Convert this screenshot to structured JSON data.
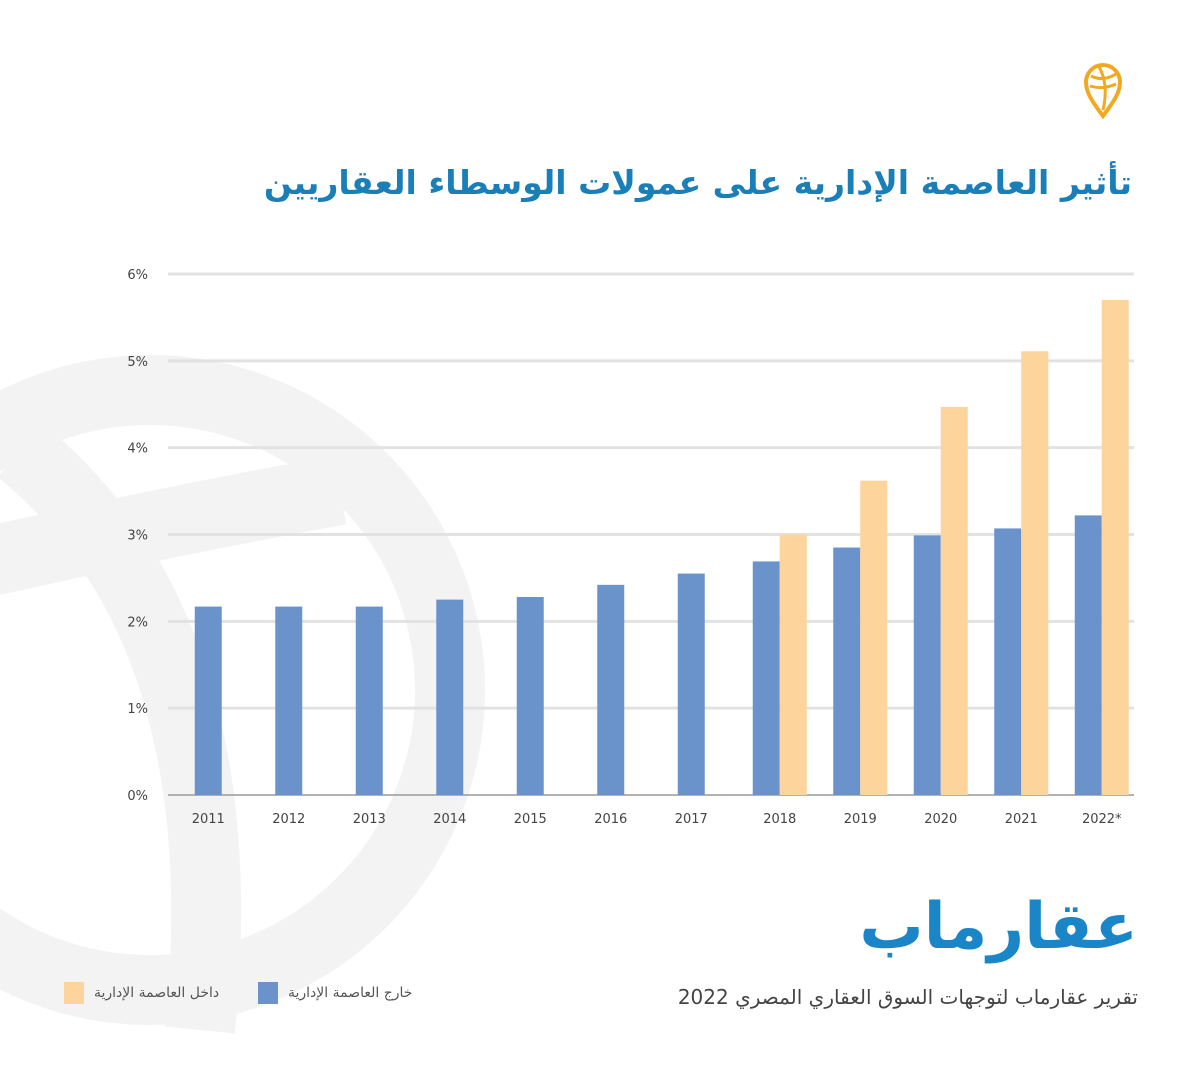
{
  "title": "تأثير العاصمة الإدارية على عمولات الوسطاء العقاريين",
  "brand": "عقارماب",
  "report_caption": "تقرير عقارماب لتوجهات السوق العقاري المصري 2022",
  "icons": {
    "logo": "map-pin-globe-icon",
    "watermark": "globe-watermark"
  },
  "colors": {
    "outside": "#6a93cc",
    "inside": "#fdd49c",
    "title": "#1a7fb8",
    "pin": "#f2a922"
  },
  "chart_data": {
    "type": "bar",
    "title": "تأثير العاصمة الإدارية على عمولات الوسطاء العقاريين",
    "categories": [
      "2011",
      "2012",
      "2013",
      "2014",
      "2015",
      "2016",
      "2017",
      "2018",
      "2019",
      "2020",
      "2021",
      "2022*"
    ],
    "series": [
      {
        "name": "خارج العاصمة الإدارية",
        "color": "#6a93cc",
        "values": [
          2.17,
          2.17,
          2.17,
          2.25,
          2.28,
          2.42,
          2.55,
          2.69,
          2.85,
          2.99,
          3.07,
          3.22
        ]
      },
      {
        "name": "داخل العاصمة الإدارية",
        "color": "#fdd49c",
        "values": [
          null,
          null,
          null,
          null,
          null,
          null,
          null,
          3.0,
          3.62,
          4.47,
          5.11,
          5.7
        ]
      }
    ],
    "yticks": [
      "0%",
      "1%",
      "2%",
      "3%",
      "4%",
      "5%",
      "6%"
    ],
    "ylim": [
      0,
      6
    ],
    "grid": true,
    "legend": "bottom-left"
  }
}
